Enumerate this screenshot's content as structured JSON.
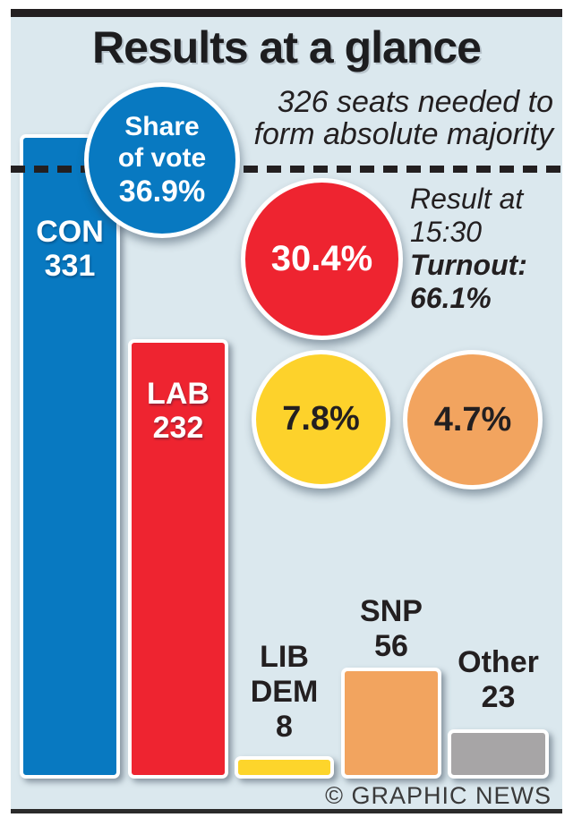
{
  "title": "Results at a glance",
  "subtitle": {
    "line1": "326 seats needed to",
    "line2": "form absolute majority"
  },
  "status": {
    "line1": "Result at",
    "line2": "15:30",
    "turnout_label": "Turnout:",
    "turnout_value": "66.1%"
  },
  "share_of_vote": {
    "heading_line1": "Share",
    "heading_line2": "of vote",
    "circles": [
      {
        "party": "CON",
        "value": "36.9%",
        "color": "#0879c1"
      },
      {
        "party": "LAB",
        "value": "30.4%",
        "color": "#ee2430"
      },
      {
        "party": "LIB DEM",
        "value": "7.8%",
        "color": "#fdd22b"
      },
      {
        "party": "SNP",
        "value": "4.7%",
        "color": "#f2a45f"
      }
    ]
  },
  "bars": [
    {
      "label_line1": "CON",
      "seats": "331",
      "color": "#0879c1"
    },
    {
      "label_line1": "LAB",
      "seats": "232",
      "color": "#ee2430"
    },
    {
      "label_line1": "LIB",
      "label_line2": "DEM",
      "seats": "8",
      "color": "#fdd52b"
    },
    {
      "label_line1": "SNP",
      "seats": "56",
      "color": "#f2a45f"
    },
    {
      "label_line1": "Other",
      "seats": "23",
      "color": "#a7a5a6"
    }
  ],
  "footer": {
    "credit": "© GRAPHIC NEWS"
  },
  "chart_data": {
    "type": "bar",
    "title": "Results at a glance",
    "categories": [
      "CON",
      "LAB",
      "LIB DEM",
      "SNP",
      "Other"
    ],
    "series": [
      {
        "name": "Seats",
        "values": [
          331,
          232,
          8,
          56,
          23
        ]
      },
      {
        "name": "Share of vote (%)",
        "values": [
          36.9,
          30.4,
          7.8,
          4.7,
          null
        ]
      }
    ],
    "annotations": {
      "majority_threshold_seats": 326,
      "majority_note": "326 seats needed to form absolute majority",
      "result_time": "15:30",
      "turnout_percent": 66.1
    },
    "ylim": [
      0,
      340
    ],
    "grid": false,
    "legend": false
  },
  "colors": {
    "background": "#dbe8ee",
    "frame": "#231f20",
    "con_blue": "#0879c1",
    "lab_red": "#ee2430",
    "libdem_yellow": "#fdd22b",
    "snp_orange": "#f2a45f",
    "other_gray": "#a7a5a6"
  }
}
